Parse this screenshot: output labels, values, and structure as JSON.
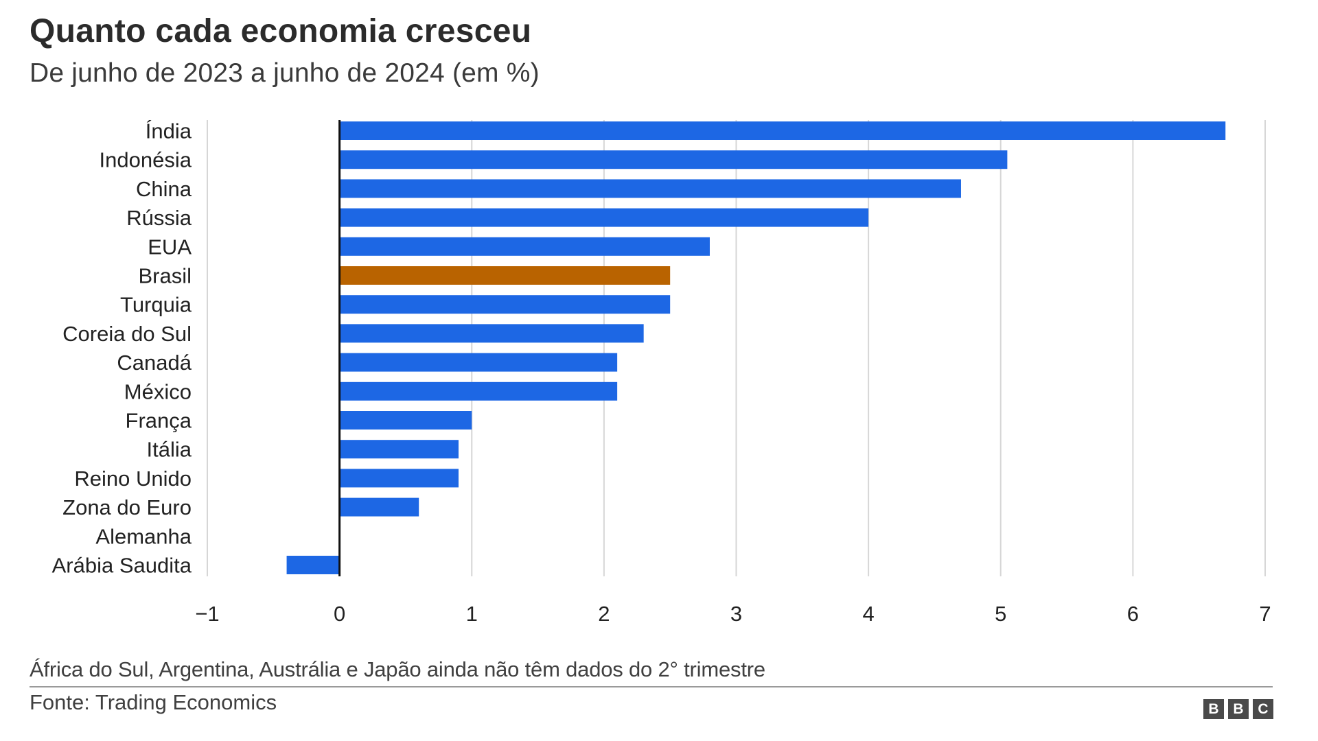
{
  "header": {
    "title": "Quanto cada economia cresceu",
    "subtitle": "De junho de 2023 a junho de 2024 (em %)"
  },
  "chart_data": {
    "type": "bar",
    "orientation": "horizontal",
    "title": "Quanto cada economia cresceu",
    "subtitle": "De junho de 2023 a junho de 2024 (em %)",
    "xlabel": "",
    "ylabel": "",
    "categories": [
      "Índia",
      "Indonésia",
      "China",
      "Rússia",
      "EUA",
      "Brasil",
      "Turquia",
      "Coreia do Sul",
      "Canadá",
      "México",
      "França",
      "Itália",
      "Reino Unido",
      "Zona do Euro",
      "Alemanha",
      "Arábia Saudita"
    ],
    "values": [
      6.7,
      5.05,
      4.7,
      4.0,
      2.8,
      2.5,
      2.5,
      2.3,
      2.1,
      2.1,
      1.0,
      0.9,
      0.9,
      0.6,
      0.0,
      -0.4
    ],
    "highlight": "Brasil",
    "xlim": [
      -1,
      7
    ],
    "xticks": [
      -1,
      0,
      1,
      2,
      3,
      4,
      5,
      6,
      7
    ],
    "xtick_labels": [
      "−1",
      "0",
      "1",
      "2",
      "3",
      "4",
      "5",
      "6",
      "7"
    ],
    "grid": true,
    "colors": {
      "default": "#1d67e4",
      "highlight": "#b96300",
      "zero_line": "#111111",
      "grid": "#d6d6d6"
    }
  },
  "footer": {
    "note": "África do Sul, Argentina, Austrália e Japão ainda não têm dados do 2° trimestre",
    "source": "Fonte: Trading Economics",
    "logo_letters": [
      "B",
      "B",
      "C"
    ]
  }
}
